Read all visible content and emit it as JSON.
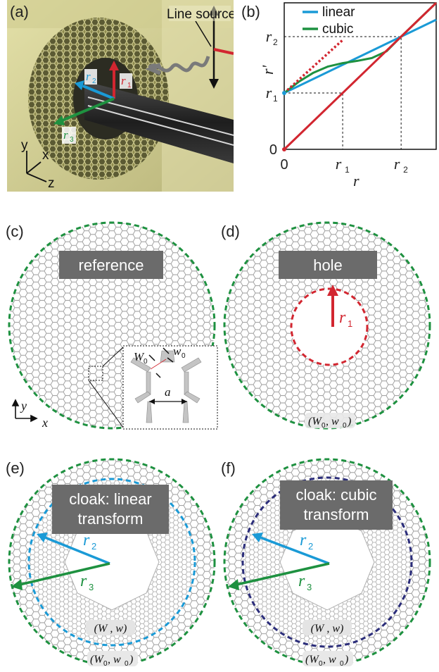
{
  "panels": {
    "a": {
      "tag": "(a)",
      "source_label": "Line source",
      "r1": "r",
      "r1_sub": "1",
      "r2": "r",
      "r2_sub": "2",
      "r3": "r",
      "r3_sub": "3",
      "axis_y": "y",
      "axis_x": "x",
      "axis_z": "z"
    },
    "b": {
      "tag": "(b)"
    },
    "c": {
      "tag": "(c)",
      "box_label": "reference",
      "inset_W": "W",
      "inset_W_sub": "0",
      "inset_w": "w",
      "inset_w_sub": "0",
      "inset_a": "a",
      "axis_y": "y",
      "axis_x": "x"
    },
    "d": {
      "tag": "(d)",
      "box_label": "hole",
      "r": "r",
      "r_sub": "1",
      "param": "(W",
      "param_sub1": "0",
      "param_mid": ", w",
      "param_sub2": "0",
      "param_end": ")"
    },
    "e": {
      "tag": "(e)",
      "box_line1": "cloak:  linear",
      "box_line2": "transform",
      "r2": "r",
      "r2_sub": "2",
      "r3": "r",
      "r3_sub": "3",
      "inner_param": "(W , w)",
      "outer_param": "(W",
      "outer_sub1": "0",
      "outer_mid": ", w",
      "outer_sub2": "0",
      "outer_end": ")"
    },
    "f": {
      "tag": "(f)",
      "box_line1": "cloak: cubic",
      "box_line2": "transform",
      "r2": "r",
      "r2_sub": "2",
      "r3": "r",
      "r3_sub": "3",
      "inner_param": "(W , w)",
      "outer_param": "(W",
      "outer_sub1": "0",
      "outer_mid": ", w",
      "outer_sub2": "0",
      "outer_end": ")"
    }
  },
  "chart_data": {
    "type": "line",
    "xlabel": "r",
    "ylabel": "r'",
    "x_ticks": [
      "0",
      "r1",
      "r2"
    ],
    "y_ticks": [
      "0",
      "r1",
      "r2"
    ],
    "xlim": [
      0,
      2.6
    ],
    "ylim": [
      0,
      2.6
    ],
    "r1": 1.0,
    "r2": 2.0,
    "series": [
      {
        "name": "linear",
        "color": "#1a9ad6",
        "x": [
          0,
          2.0,
          2.6
        ],
        "y": [
          1.0,
          2.0,
          2.3
        ]
      },
      {
        "name": "cubic",
        "color": "#1e9140",
        "x": [
          0,
          0.25,
          0.5,
          0.75,
          1.0,
          1.25,
          1.5,
          1.75,
          2.0,
          2.25,
          2.5,
          2.6
        ],
        "y": [
          1.0,
          1.2,
          1.36,
          1.47,
          1.53,
          1.57,
          1.62,
          1.74,
          2.0,
          2.25,
          2.5,
          2.6
        ]
      },
      {
        "x": [
          0,
          2.6
        ],
        "y": [
          0,
          2.6
        ],
        "color": "#d22630"
      },
      {
        "x": [
          0,
          1.0
        ],
        "y": [
          1.0,
          1.94
        ],
        "color": "#d22630",
        "style": "dotted"
      }
    ],
    "legend": [
      "linear",
      "cubic"
    ],
    "legend_position": "top-left"
  },
  "colors": {
    "green": "#1e9140",
    "blue": "#1a9ad6",
    "red": "#d22630",
    "navy": "#2b2d7a",
    "box": "#6b6b6b",
    "beam": "#2a2a2a",
    "material": "#d6d39a"
  }
}
